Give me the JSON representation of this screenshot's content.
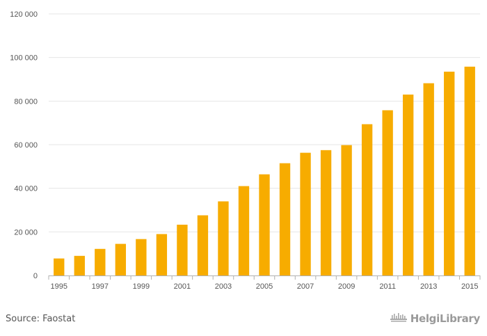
{
  "chart_data": {
    "type": "bar",
    "title": "",
    "xlabel": "",
    "ylabel": "",
    "categories": [
      "1995",
      "1996",
      "1997",
      "1998",
      "1999",
      "2000",
      "2001",
      "2002",
      "2003",
      "2004",
      "2005",
      "2006",
      "2007",
      "2008",
      "2009",
      "2010",
      "2011",
      "2012",
      "2013",
      "2014",
      "2015"
    ],
    "x_tick_labels": [
      "1995",
      "1997",
      "1999",
      "2001",
      "2003",
      "2005",
      "2007",
      "2009",
      "2011",
      "2013",
      "2015"
    ],
    "values": [
      7800,
      9000,
      12200,
      14500,
      16700,
      19000,
      23300,
      27600,
      34000,
      41000,
      46400,
      51500,
      56300,
      57500,
      59800,
      69400,
      75800,
      83000,
      88200,
      93500,
      95800
    ],
    "ylim": [
      0,
      120000
    ],
    "y_ticks": [
      0,
      20000,
      40000,
      60000,
      80000,
      100000,
      120000
    ],
    "y_tick_labels": [
      "0",
      "20 000",
      "40 000",
      "60 000",
      "80 000",
      "100 000",
      "120 000"
    ],
    "grid": true,
    "bar_color": "#f7ac00",
    "grid_color": "#e6e6e6"
  },
  "footer": {
    "source": "Source: Faostat",
    "brand": "HelgiLibrary"
  },
  "icons": {
    "brand_logo": "library-logo-icon"
  }
}
